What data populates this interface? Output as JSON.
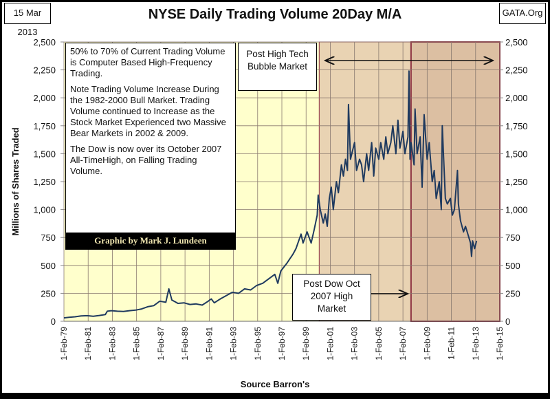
{
  "header": {
    "date": "15 Mar 2013",
    "title": "NYSE Daily Trading Volume 20Day  M/A",
    "site": "GATA.Org"
  },
  "notes": {
    "p1": "50% to 70% of Current Trading Volume is Computer Based High-Frequency Trading.",
    "p2": "Note Trading Volume Increase During the 1982-2000 Bull Market.  Trading Volume continued to Increase as the Stock Market Experienced two Massive Bear Markets in 2002 & 2009.",
    "p3": "The Dow is now over its October 2007 All-TimeHigh, on Falling Trading Volume.",
    "credit": "Graphic by Mark J. Lundeen"
  },
  "annotations": {
    "post_bubble": "Post High Tech  Bubble Market",
    "post_dow": "Post Dow Oct 2007 High Market"
  },
  "colors": {
    "plot_bg": "#FFFFCC",
    "bubble_shade": "#E9D3B3",
    "dow_shade": "#DCBFA2",
    "dow_border": "#8B2F3F",
    "line": "#1F3A5F"
  },
  "chart_data": {
    "type": "line",
    "title": "NYSE Daily Trading Volume 20Day  M/A",
    "xlabel": "Source Barron's",
    "ylabel": "Millions of Shares Traded",
    "ylim": [
      0,
      2500
    ],
    "xlim": [
      "1979-02",
      "2015-02"
    ],
    "grid": true,
    "yticks": [
      "0",
      "250",
      "500",
      "750",
      "1,000",
      "1,250",
      "1,500",
      "1,750",
      "2,000",
      "2,250",
      "2,500"
    ],
    "xticks": [
      "1-Feb-79",
      "1-Feb-81",
      "1-Feb-83",
      "1-Feb-85",
      "1-Feb-87",
      "1-Feb-89",
      "1-Feb-91",
      "1-Feb-93",
      "1-Feb-95",
      "1-Feb-97",
      "1-Feb-99",
      "1-Feb-01",
      "1-Feb-03",
      "1-Feb-05",
      "1-Feb-07",
      "1-Feb-09",
      "1-Feb-11",
      "1-Feb-13",
      "1-Feb-15"
    ],
    "shaded_regions": [
      {
        "label": "Post High Tech  Bubble Market",
        "start": "2000-03",
        "end": "2015-02"
      },
      {
        "label": "Post Dow Oct 2007 High Market",
        "start": "2007-10",
        "end": "2015-02"
      }
    ],
    "series": [
      {
        "points": [
          [
            "1979-02",
            30
          ],
          [
            "1979-07",
            35
          ],
          [
            "1980-01",
            40
          ],
          [
            "1980-07",
            48
          ],
          [
            "1981-01",
            50
          ],
          [
            "1981-07",
            45
          ],
          [
            "1982-01",
            52
          ],
          [
            "1982-07",
            60
          ],
          [
            "1982-09",
            90
          ],
          [
            "1983-01",
            95
          ],
          [
            "1983-07",
            90
          ],
          [
            "1984-01",
            88
          ],
          [
            "1984-07",
            95
          ],
          [
            "1985-01",
            100
          ],
          [
            "1985-07",
            110
          ],
          [
            "1986-01",
            130
          ],
          [
            "1986-07",
            140
          ],
          [
            "1987-01",
            180
          ],
          [
            "1987-07",
            170
          ],
          [
            "1987-10",
            290
          ],
          [
            "1988-01",
            190
          ],
          [
            "1988-07",
            160
          ],
          [
            "1989-01",
            165
          ],
          [
            "1989-07",
            150
          ],
          [
            "1990-01",
            155
          ],
          [
            "1990-07",
            145
          ],
          [
            "1991-01",
            180
          ],
          [
            "1991-04",
            200
          ],
          [
            "1991-07",
            165
          ],
          [
            "1992-01",
            200
          ],
          [
            "1992-07",
            230
          ],
          [
            "1993-01",
            260
          ],
          [
            "1993-07",
            250
          ],
          [
            "1994-01",
            290
          ],
          [
            "1994-07",
            280
          ],
          [
            "1995-01",
            320
          ],
          [
            "1995-07",
            340
          ],
          [
            "1996-01",
            380
          ],
          [
            "1996-07",
            420
          ],
          [
            "1996-10",
            340
          ],
          [
            "1997-01",
            450
          ],
          [
            "1997-07",
            520
          ],
          [
            "1997-10",
            560
          ],
          [
            "1998-01",
            600
          ],
          [
            "1998-04",
            650
          ],
          [
            "1998-09",
            780
          ],
          [
            "1998-11",
            700
          ],
          [
            "1999-03",
            800
          ],
          [
            "1999-07",
            700
          ],
          [
            "1999-10",
            820
          ],
          [
            "2000-01",
            950
          ],
          [
            "2000-02",
            1130
          ],
          [
            "2000-04",
            1000
          ],
          [
            "2000-07",
            880
          ],
          [
            "2000-09",
            960
          ],
          [
            "2000-11",
            850
          ],
          [
            "2001-01",
            1100
          ],
          [
            "2001-03",
            1200
          ],
          [
            "2001-05",
            1000
          ],
          [
            "2001-08",
            1250
          ],
          [
            "2001-10",
            1150
          ],
          [
            "2002-01",
            1400
          ],
          [
            "2002-03",
            1300
          ],
          [
            "2002-05",
            1450
          ],
          [
            "2002-07",
            1350
          ],
          [
            "2002-08",
            1940
          ],
          [
            "2002-10",
            1450
          ],
          [
            "2003-02",
            1600
          ],
          [
            "2003-04",
            1350
          ],
          [
            "2003-07",
            1450
          ],
          [
            "2003-09",
            1400
          ],
          [
            "2003-11",
            1250
          ],
          [
            "2004-02",
            1500
          ],
          [
            "2004-04",
            1350
          ],
          [
            "2004-07",
            1600
          ],
          [
            "2004-09",
            1300
          ],
          [
            "2004-11",
            1550
          ],
          [
            "2005-02",
            1450
          ],
          [
            "2005-04",
            1600
          ],
          [
            "2005-07",
            1450
          ],
          [
            "2005-09",
            1650
          ],
          [
            "2005-11",
            1500
          ],
          [
            "2006-02",
            1600
          ],
          [
            "2006-04",
            1750
          ],
          [
            "2006-07",
            1500
          ],
          [
            "2006-09",
            1800
          ],
          [
            "2006-11",
            1550
          ],
          [
            "2007-02",
            1700
          ],
          [
            "2007-04",
            1500
          ],
          [
            "2007-07",
            1650
          ],
          [
            "2007-08",
            2240
          ],
          [
            "2007-09",
            1450
          ],
          [
            "2007-10",
            1600
          ],
          [
            "2008-01",
            1400
          ],
          [
            "2008-02",
            1900
          ],
          [
            "2008-04",
            1500
          ],
          [
            "2008-07",
            1650
          ],
          [
            "2008-09",
            1200
          ],
          [
            "2008-11",
            1850
          ],
          [
            "2009-02",
            1450
          ],
          [
            "2009-04",
            1600
          ],
          [
            "2009-07",
            1250
          ],
          [
            "2009-09",
            1350
          ],
          [
            "2009-11",
            1100
          ],
          [
            "2010-02",
            1250
          ],
          [
            "2010-04",
            1000
          ],
          [
            "2010-05",
            1750
          ],
          [
            "2010-08",
            1100
          ],
          [
            "2010-10",
            1050
          ],
          [
            "2011-01",
            1100
          ],
          [
            "2011-03",
            950
          ],
          [
            "2011-05",
            1000
          ],
          [
            "2011-08",
            1350
          ],
          [
            "2011-09",
            1050
          ],
          [
            "2011-11",
            900
          ],
          [
            "2012-02",
            800
          ],
          [
            "2012-04",
            850
          ],
          [
            "2012-07",
            760
          ],
          [
            "2012-09",
            700
          ],
          [
            "2012-10",
            580
          ],
          [
            "2012-11",
            720
          ],
          [
            "2013-01",
            650
          ],
          [
            "2013-03",
            720
          ]
        ]
      }
    ]
  }
}
